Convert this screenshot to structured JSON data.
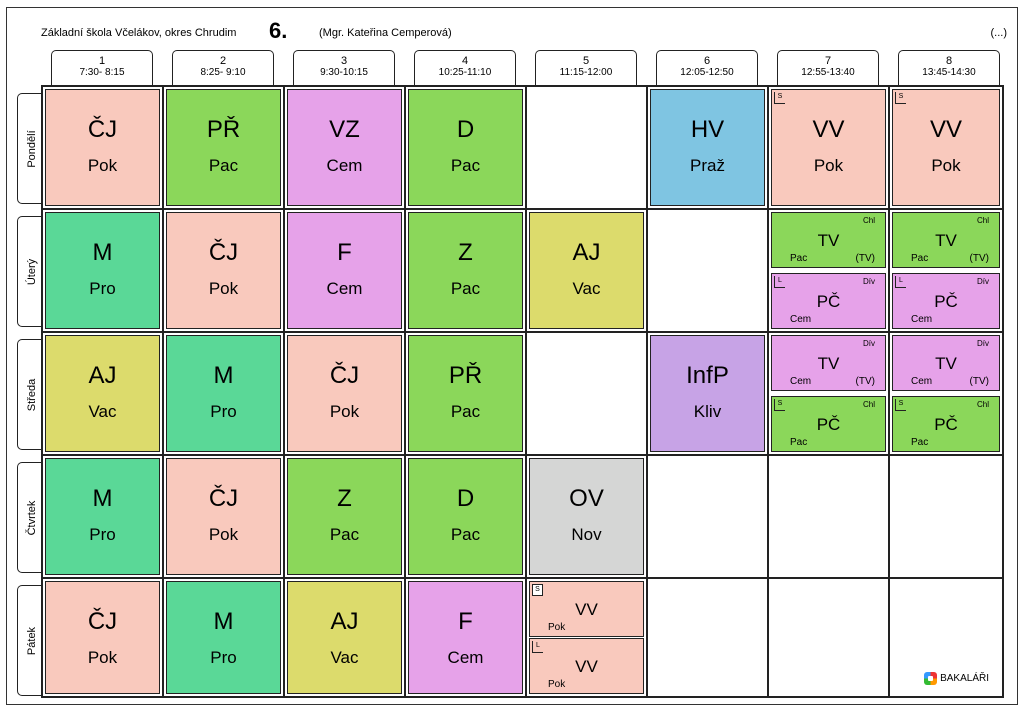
{
  "header": {
    "school": "Základní škola Včelákov, okres Chrudim",
    "class_name": "6.",
    "teacher": "(Mgr. Kateřina Cemperová)",
    "ellipsis": "(...)"
  },
  "periods": [
    {
      "num": "1",
      "time": "7:30- 8:15"
    },
    {
      "num": "2",
      "time": "8:25- 9:10"
    },
    {
      "num": "3",
      "time": "9:30-10:15"
    },
    {
      "num": "4",
      "time": "10:25-11:10"
    },
    {
      "num": "5",
      "time": "11:15-12:00"
    },
    {
      "num": "6",
      "time": "12:05-12:50"
    },
    {
      "num": "7",
      "time": "12:55-13:40"
    },
    {
      "num": "8",
      "time": "13:45-14:30"
    }
  ],
  "days": [
    "Pondělí",
    "Úterý",
    "Středa",
    "Čtvrtek",
    "Pátek"
  ],
  "lessons": {
    "mon": [
      {
        "subject": "ČJ",
        "teacher": "Pok"
      },
      {
        "subject": "PŘ",
        "teacher": "Pac"
      },
      {
        "subject": "VZ",
        "teacher": "Cem"
      },
      {
        "subject": "D",
        "teacher": "Pac"
      },
      {
        "subject": "HV",
        "teacher": "Praž"
      },
      {
        "subject": "VV",
        "teacher": "Pok",
        "flag": "S"
      },
      {
        "subject": "VV",
        "teacher": "Pok",
        "flag": "S"
      }
    ],
    "tue": [
      {
        "subject": "M",
        "teacher": "Pro"
      },
      {
        "subject": "ČJ",
        "teacher": "Pok"
      },
      {
        "subject": "F",
        "teacher": "Cem"
      },
      {
        "subject": "Z",
        "teacher": "Pac"
      },
      {
        "subject": "AJ",
        "teacher": "Vac"
      }
    ],
    "tue_split": [
      {
        "top": {
          "subject": "TV",
          "teacher": "Pac",
          "group": "Chl",
          "room": "(TV)"
        },
        "bottom": {
          "subject": "PČ",
          "teacher": "Cem",
          "group": "Dív",
          "flag": "L"
        }
      },
      {
        "top": {
          "subject": "TV",
          "teacher": "Pac",
          "group": "Chl",
          "room": "(TV)"
        },
        "bottom": {
          "subject": "PČ",
          "teacher": "Cem",
          "group": "Dív",
          "flag": "L"
        }
      }
    ],
    "wed": [
      {
        "subject": "AJ",
        "teacher": "Vac"
      },
      {
        "subject": "M",
        "teacher": "Pro"
      },
      {
        "subject": "ČJ",
        "teacher": "Pok"
      },
      {
        "subject": "PŘ",
        "teacher": "Pac"
      },
      {
        "subject": "InfP",
        "teacher": "Kliv"
      }
    ],
    "wed_split": [
      {
        "top": {
          "subject": "TV",
          "teacher": "Cem",
          "group": "Dív",
          "room": "(TV)"
        },
        "bottom": {
          "subject": "PČ",
          "teacher": "Pac",
          "group": "Chl",
          "flag": "S"
        }
      },
      {
        "top": {
          "subject": "TV",
          "teacher": "Cem",
          "group": "Dív",
          "room": "(TV)"
        },
        "bottom": {
          "subject": "PČ",
          "teacher": "Pac",
          "group": "Chl",
          "flag": "S"
        }
      }
    ],
    "thu": [
      {
        "subject": "M",
        "teacher": "Pro"
      },
      {
        "subject": "ČJ",
        "teacher": "Pok"
      },
      {
        "subject": "Z",
        "teacher": "Pac"
      },
      {
        "subject": "D",
        "teacher": "Pac"
      },
      {
        "subject": "OV",
        "teacher": "Nov"
      }
    ],
    "fri": [
      {
        "subject": "ČJ",
        "teacher": "Pok"
      },
      {
        "subject": "M",
        "teacher": "Pro"
      },
      {
        "subject": "AJ",
        "teacher": "Vac"
      },
      {
        "subject": "F",
        "teacher": "Cem"
      }
    ],
    "fri_split": {
      "top": {
        "subject": "VV",
        "teacher": "Pok",
        "flag": "S"
      },
      "bottom": {
        "subject": "VV",
        "teacher": "Pok",
        "flag": "L"
      }
    }
  },
  "logo_text": "BAKALÁŘI",
  "colors": {
    "cj": "#f9c9bd",
    "pr": "#8bd75a",
    "vz": "#e6a2e9",
    "m": "#5ad897",
    "aj": "#dcdb6c",
    "hv": "#7fc5e2",
    "infp": "#c7a3e6",
    "ov": "#d5d6d5"
  }
}
